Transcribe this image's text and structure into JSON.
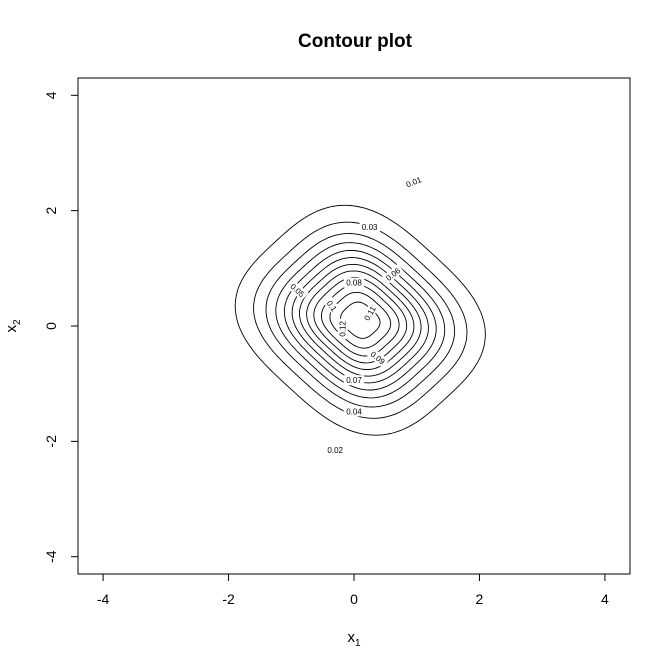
{
  "chart_data": {
    "type": "contour",
    "title": "Contour plot",
    "xlabel": {
      "base": "x",
      "sub": "1"
    },
    "ylabel": {
      "base": "x",
      "sub": "2"
    },
    "xlim": [
      -4.4,
      4.4
    ],
    "ylim": [
      -4.3,
      4.3
    ],
    "xticks": [
      -4,
      -2,
      0,
      2,
      4
    ],
    "yticks": [
      -4,
      -2,
      0,
      2,
      4
    ],
    "grid": false,
    "line_color": "#000000",
    "surface": {
      "description_free": true,
      "peak": [
        0.1,
        0.1
      ],
      "max_value": 0.128,
      "scale_u": 0.72,
      "scale_v": 0.85
    },
    "levels": [
      0.01,
      0.02,
      0.03,
      0.04,
      0.05,
      0.06,
      0.07,
      0.08,
      0.09,
      0.1,
      0.11,
      0.12
    ],
    "contour_labels": [
      {
        "text": "0.01",
        "x": 0.95,
        "y": 2.5,
        "angle": 22
      },
      {
        "text": "0.02",
        "x": -0.3,
        "y": -2.15,
        "angle": 0
      },
      {
        "text": "0.03",
        "x": 0.25,
        "y": 1.72,
        "angle": 0
      },
      {
        "text": "0.04",
        "x": 0.0,
        "y": -1.48,
        "angle": 0
      },
      {
        "text": "0.05",
        "x": -0.9,
        "y": 0.62,
        "angle": -42
      },
      {
        "text": "0.06",
        "x": 0.62,
        "y": 0.9,
        "angle": 38
      },
      {
        "text": "0.07",
        "x": 0.0,
        "y": -0.94,
        "angle": 0
      },
      {
        "text": "0.08",
        "x": 0.0,
        "y": 0.75,
        "angle": 0
      },
      {
        "text": "0.09",
        "x": 0.38,
        "y": -0.55,
        "angle": -38
      },
      {
        "text": "0.1",
        "x": -0.35,
        "y": 0.35,
        "angle": -55
      },
      {
        "text": "0.11",
        "x": 0.25,
        "y": 0.22,
        "angle": 60
      },
      {
        "text": "0.12",
        "x": -0.18,
        "y": -0.05,
        "angle": 90
      }
    ]
  }
}
